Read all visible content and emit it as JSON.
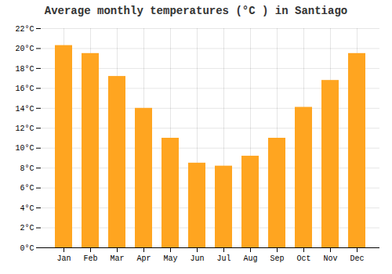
{
  "chart_data": {
    "type": "bar",
    "title": "Average monthly temperatures (°C ) in Santiago",
    "categories": [
      "Jan",
      "Feb",
      "Mar",
      "Apr",
      "May",
      "Jun",
      "Jul",
      "Aug",
      "Sep",
      "Oct",
      "Nov",
      "Dec"
    ],
    "values": [
      20.3,
      19.5,
      17.2,
      14.0,
      11.0,
      8.5,
      8.2,
      9.2,
      11.0,
      14.1,
      16.8,
      19.5
    ],
    "color": "#FFA520",
    "ylim": [
      0,
      22
    ],
    "yticks": [
      {
        "value": 0,
        "label": "0°C"
      },
      {
        "value": 2,
        "label": "2°C"
      },
      {
        "value": 4,
        "label": "4°C"
      },
      {
        "value": 6,
        "label": "6°C"
      },
      {
        "value": 8,
        "label": "8°C"
      },
      {
        "value": 10,
        "label": "10°C"
      },
      {
        "value": 12,
        "label": "12°C"
      },
      {
        "value": 14,
        "label": "14°C"
      },
      {
        "value": 16,
        "label": "16°C"
      },
      {
        "value": 18,
        "label": "18°C"
      },
      {
        "value": 20,
        "label": "20°C"
      },
      {
        "value": 22,
        "label": "22°C"
      }
    ],
    "grid": true
  }
}
